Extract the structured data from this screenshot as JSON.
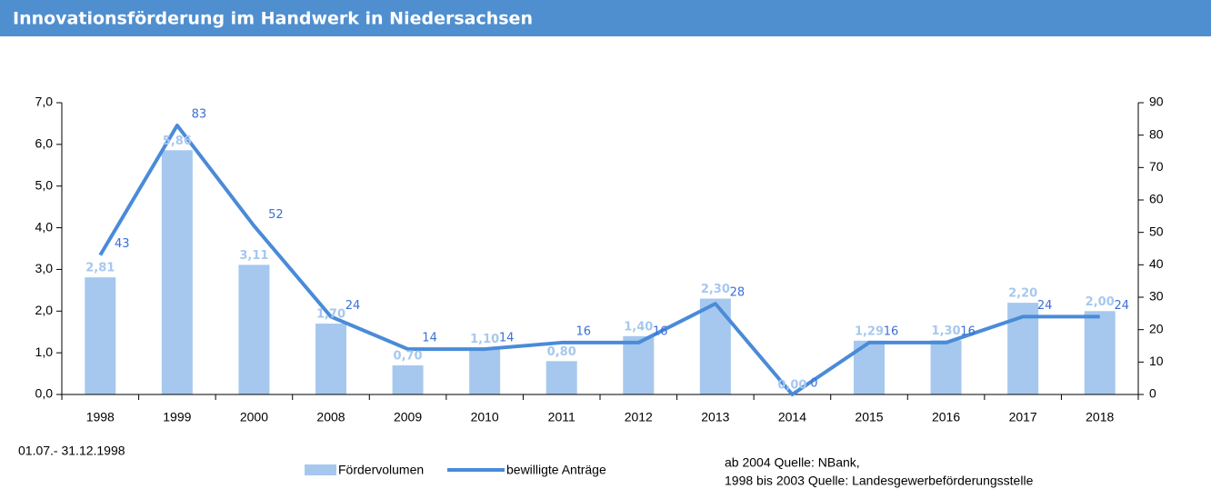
{
  "chart_data": {
    "type": "bar_line",
    "title": "Innovationsförderung im Handwerk in Niedersachsen",
    "categories": [
      "1998",
      "1999",
      "2000",
      "2008",
      "2009",
      "2010",
      "2011",
      "2012",
      "2013",
      "2014",
      "2015",
      "2016",
      "2017",
      "2018"
    ],
    "series": [
      {
        "name": "Fördervolumen",
        "type": "bar",
        "color": "#a6c8ee",
        "values": [
          2.81,
          5.86,
          3.11,
          1.7,
          0.7,
          1.1,
          0.8,
          1.4,
          2.3,
          0.0,
          1.29,
          1.3,
          2.2,
          2.0
        ],
        "value_labels": [
          "2,81",
          "5,86",
          "3,11",
          "1,70",
          "0,70",
          "1,10",
          "0,80",
          "1,40",
          "2,30",
          "0,00",
          "1,29",
          "1,30",
          "2,20",
          "2,00"
        ]
      },
      {
        "name": "bewilligte Anträge",
        "type": "line",
        "axis": "y2",
        "color": "#4a8bd8",
        "values": [
          43,
          83,
          52,
          24,
          14,
          14,
          16,
          16,
          28,
          0,
          16,
          16,
          24,
          24
        ]
      }
    ],
    "ylim": [
      0,
      7
    ],
    "yticks": [
      {
        "value": 0,
        "label": "0,0"
      },
      {
        "value": 1,
        "label": "1,0"
      },
      {
        "value": 2,
        "label": "2,0"
      },
      {
        "value": 3,
        "label": "3,0"
      },
      {
        "value": 4,
        "label": "4,0"
      },
      {
        "value": 5,
        "label": "5,0"
      },
      {
        "value": 6,
        "label": "6,0"
      },
      {
        "value": 7,
        "label": "7,0"
      }
    ],
    "y2lim": [
      0,
      90
    ],
    "y2ticks": [
      0,
      10,
      20,
      30,
      40,
      50,
      60,
      70,
      80,
      90
    ],
    "annotations": [
      "01.07.- 31.12.1998",
      "ab 2004 Quelle: NBank,",
      "1998 bis 2003 Quelle: Landesgewerbeförderungsstelle"
    ]
  }
}
